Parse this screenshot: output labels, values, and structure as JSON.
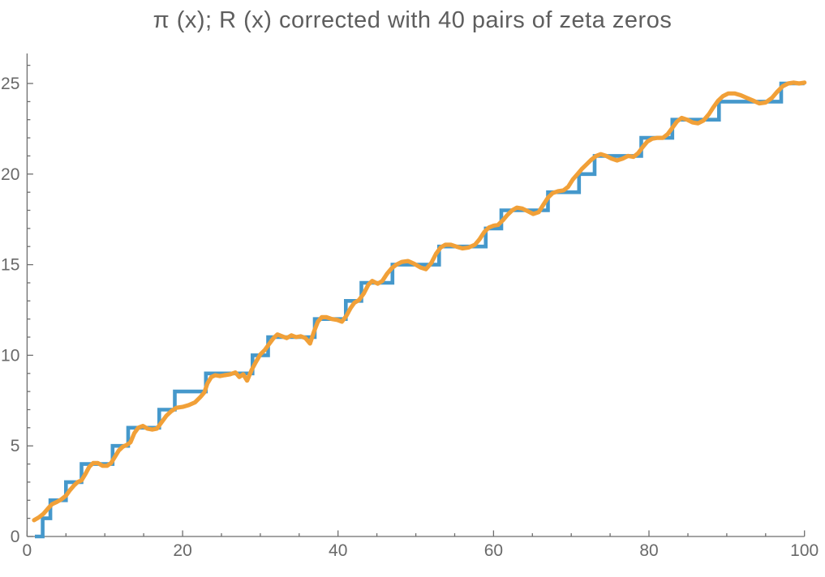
{
  "chart_data": {
    "type": "line",
    "title": "π (x); R (x) corrected with 40 pairs of zeta zeros",
    "xlabel": "",
    "ylabel": "",
    "xlim": [
      0,
      100
    ],
    "ylim": [
      0,
      26.6
    ],
    "grid": false,
    "legend_position": "none",
    "x_ticks": {
      "major": [
        0,
        20,
        40,
        60,
        80,
        100
      ],
      "minor_step": 5
    },
    "y_ticks": {
      "major": [
        0,
        5,
        10,
        15,
        20,
        25
      ],
      "minor_step": 1
    },
    "colors": {
      "background": "#ffffff",
      "axis": "#6e6e6e",
      "tick_label": "#696969",
      "title": "#5e5e5e",
      "pi_step": "#4598cb",
      "r_curve": "#f1a038"
    },
    "series": [
      {
        "name": "π(x)",
        "type": "step",
        "color_key": "pi_step",
        "line_width": 4.6,
        "x_start": 1,
        "x_end": 100,
        "primes": [
          2,
          3,
          5,
          7,
          11,
          13,
          17,
          19,
          23,
          29,
          31,
          37,
          41,
          43,
          47,
          53,
          59,
          61,
          67,
          71,
          73,
          79,
          83,
          89,
          97
        ],
        "final_value": 25
      },
      {
        "name": "R(x) corrected with 40 pairs of zeta zeros",
        "type": "line",
        "color_key": "r_curve",
        "line_width": 5.2,
        "points": [
          [
            0.9,
            0.9
          ],
          [
            1.5,
            1.05
          ],
          [
            2.1,
            1.25
          ],
          [
            2.7,
            1.55
          ],
          [
            3.2,
            1.78
          ],
          [
            3.8,
            1.9
          ],
          [
            4.4,
            2.05
          ],
          [
            5.0,
            2.25
          ],
          [
            5.5,
            2.55
          ],
          [
            6.0,
            2.8
          ],
          [
            6.5,
            3.0
          ],
          [
            7.0,
            3.1
          ],
          [
            7.5,
            3.45
          ],
          [
            8.0,
            3.85
          ],
          [
            8.5,
            4.05
          ],
          [
            9.1,
            4.05
          ],
          [
            9.7,
            3.9
          ],
          [
            10.3,
            3.9
          ],
          [
            10.8,
            4.05
          ],
          [
            11.3,
            4.4
          ],
          [
            11.8,
            4.75
          ],
          [
            12.3,
            4.95
          ],
          [
            12.8,
            5.05
          ],
          [
            13.3,
            5.2
          ],
          [
            13.8,
            5.7
          ],
          [
            14.3,
            6.0
          ],
          [
            14.9,
            6.1
          ],
          [
            15.5,
            5.95
          ],
          [
            16.1,
            5.9
          ],
          [
            16.7,
            5.95
          ],
          [
            17.3,
            6.3
          ],
          [
            17.9,
            6.65
          ],
          [
            18.5,
            6.9
          ],
          [
            19.2,
            7.1
          ],
          [
            20.0,
            7.15
          ],
          [
            20.8,
            7.25
          ],
          [
            21.6,
            7.4
          ],
          [
            22.3,
            7.7
          ],
          [
            22.8,
            7.95
          ],
          [
            23.2,
            8.45
          ],
          [
            23.7,
            8.8
          ],
          [
            24.2,
            8.9
          ],
          [
            24.8,
            8.85
          ],
          [
            25.4,
            8.9
          ],
          [
            26.1,
            8.95
          ],
          [
            26.8,
            9.05
          ],
          [
            27.3,
            8.8
          ],
          [
            27.8,
            8.95
          ],
          [
            28.3,
            8.6
          ],
          [
            28.9,
            9.2
          ],
          [
            29.4,
            9.6
          ],
          [
            30.0,
            10.05
          ],
          [
            30.6,
            10.3
          ],
          [
            31.1,
            10.6
          ],
          [
            31.7,
            10.95
          ],
          [
            32.2,
            11.15
          ],
          [
            32.8,
            11.05
          ],
          [
            33.4,
            10.95
          ],
          [
            34.0,
            11.1
          ],
          [
            34.6,
            11.0
          ],
          [
            35.2,
            11.05
          ],
          [
            35.8,
            10.95
          ],
          [
            36.4,
            10.65
          ],
          [
            36.9,
            11.3
          ],
          [
            37.4,
            11.85
          ],
          [
            37.9,
            12.1
          ],
          [
            38.5,
            12.1
          ],
          [
            39.2,
            12.0
          ],
          [
            39.9,
            11.95
          ],
          [
            40.5,
            11.85
          ],
          [
            41.1,
            12.2
          ],
          [
            41.6,
            12.6
          ],
          [
            42.1,
            12.9
          ],
          [
            42.7,
            13.05
          ],
          [
            43.3,
            13.4
          ],
          [
            43.9,
            13.9
          ],
          [
            44.4,
            14.1
          ],
          [
            45.1,
            13.95
          ],
          [
            45.7,
            14.1
          ],
          [
            46.3,
            14.5
          ],
          [
            46.9,
            14.8
          ],
          [
            47.5,
            15.0
          ],
          [
            48.2,
            15.15
          ],
          [
            49.0,
            15.2
          ],
          [
            49.8,
            15.05
          ],
          [
            50.6,
            14.85
          ],
          [
            51.3,
            14.75
          ],
          [
            52.0,
            15.1
          ],
          [
            52.6,
            15.6
          ],
          [
            53.2,
            15.95
          ],
          [
            53.8,
            16.1
          ],
          [
            54.5,
            16.1
          ],
          [
            55.2,
            16.0
          ],
          [
            56.0,
            15.9
          ],
          [
            56.8,
            15.95
          ],
          [
            57.6,
            16.1
          ],
          [
            58.2,
            16.4
          ],
          [
            58.8,
            16.8
          ],
          [
            59.4,
            17.05
          ],
          [
            60.0,
            17.15
          ],
          [
            60.6,
            17.2
          ],
          [
            61.2,
            17.45
          ],
          [
            61.8,
            17.75
          ],
          [
            62.4,
            18.0
          ],
          [
            63.0,
            18.15
          ],
          [
            63.7,
            18.1
          ],
          [
            64.4,
            17.95
          ],
          [
            65.1,
            17.8
          ],
          [
            65.8,
            17.9
          ],
          [
            66.4,
            18.3
          ],
          [
            67.0,
            18.7
          ],
          [
            67.6,
            18.95
          ],
          [
            68.3,
            19.05
          ],
          [
            69.0,
            19.1
          ],
          [
            69.6,
            19.3
          ],
          [
            70.2,
            19.7
          ],
          [
            70.8,
            20.0
          ],
          [
            71.4,
            20.3
          ],
          [
            72.0,
            20.55
          ],
          [
            72.6,
            20.8
          ],
          [
            73.2,
            21.0
          ],
          [
            73.8,
            21.1
          ],
          [
            74.5,
            21.0
          ],
          [
            75.2,
            20.85
          ],
          [
            75.9,
            20.75
          ],
          [
            76.6,
            20.85
          ],
          [
            77.3,
            21.0
          ],
          [
            78.0,
            20.95
          ],
          [
            78.6,
            21.15
          ],
          [
            79.2,
            21.5
          ],
          [
            79.8,
            21.8
          ],
          [
            80.4,
            21.95
          ],
          [
            81.1,
            22.0
          ],
          [
            81.8,
            22.0
          ],
          [
            82.4,
            22.2
          ],
          [
            83.0,
            22.55
          ],
          [
            83.6,
            22.9
          ],
          [
            84.2,
            23.1
          ],
          [
            84.9,
            23.0
          ],
          [
            85.6,
            22.85
          ],
          [
            86.3,
            22.8
          ],
          [
            87.0,
            22.95
          ],
          [
            87.7,
            23.3
          ],
          [
            88.3,
            23.7
          ],
          [
            88.9,
            24.05
          ],
          [
            89.5,
            24.3
          ],
          [
            90.2,
            24.45
          ],
          [
            91.0,
            24.45
          ],
          [
            91.8,
            24.35
          ],
          [
            92.6,
            24.2
          ],
          [
            93.4,
            24.05
          ],
          [
            94.2,
            23.9
          ],
          [
            95.0,
            23.95
          ],
          [
            95.8,
            24.2
          ],
          [
            96.5,
            24.55
          ],
          [
            97.2,
            24.85
          ],
          [
            97.9,
            25.0
          ],
          [
            98.6,
            25.05
          ],
          [
            99.3,
            25.0
          ],
          [
            100.0,
            25.05
          ]
        ]
      }
    ]
  }
}
